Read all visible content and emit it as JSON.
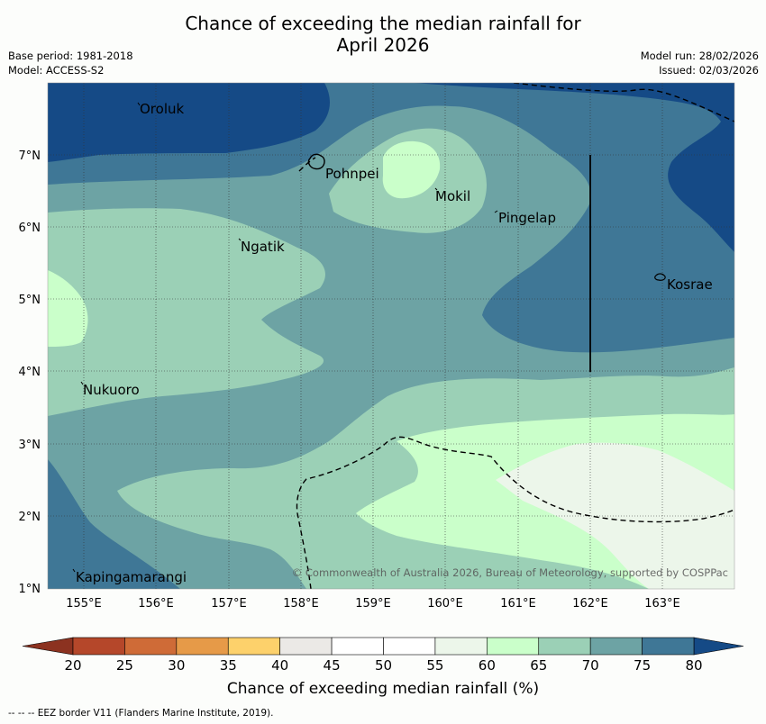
{
  "title_line1": "Chance of exceeding the median rainfall for",
  "title_line2": "April 2026",
  "base_period": "Base period: 1981-2018",
  "model": "Model: ACCESS-S2",
  "model_run": "Model run: 28/02/2026",
  "issued": "Issued: 02/03/2026",
  "copyright": "© Commonwealth of Australia 2026, Bureau of Meteorology, supported by COSPPac",
  "footnote": "--  --  -- EEZ border V11 (Flanders Marine Institute, 2019).",
  "map": {
    "lon_ticks": [
      "155°E",
      "156°E",
      "157°E",
      "158°E",
      "159°E",
      "160°E",
      "161°E",
      "162°E",
      "163°E"
    ],
    "lat_ticks": [
      "7°N",
      "6°N",
      "5°N",
      "4°N",
      "3°N",
      "2°N",
      "1°N"
    ],
    "places": [
      {
        "name": "Oroluk"
      },
      {
        "name": "Pohnpei"
      },
      {
        "name": "Mokil"
      },
      {
        "name": "Pingelap"
      },
      {
        "name": "Ngatik"
      },
      {
        "name": "Kosrae"
      },
      {
        "name": "Nukuoro"
      },
      {
        "name": "Kapingamarangi"
      }
    ]
  },
  "colorbar": {
    "title": "Chance of exceeding median rainfall (%)",
    "ticks": [
      "20",
      "25",
      "30",
      "35",
      "40",
      "45",
      "50",
      "55",
      "60",
      "65",
      "70",
      "75",
      "80"
    ],
    "colors": [
      "#b5472a",
      "#cf6b37",
      "#e69a48",
      "#fdd16b",
      "#ebe9e6",
      "#ffffff",
      "#ffffff",
      "#ecf6ea",
      "#caffca",
      "#9bd0b6",
      "#6da3a4",
      "#3f7796"
    ],
    "under_color": "#8c3220",
    "over_color": "#154a86"
  }
}
